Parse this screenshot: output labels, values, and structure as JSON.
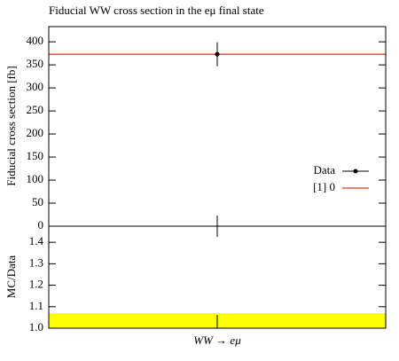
{
  "chart_data": [
    {
      "type": "errorbar",
      "title": "Fiducial WW cross section in the eμ final state",
      "ylabel": "Fiducial cross section [fb]",
      "ylim": [
        0,
        433
      ],
      "yticks": [
        0,
        50,
        100,
        150,
        200,
        250,
        300,
        350,
        400
      ],
      "series": [
        {
          "name": "Data",
          "color": "#000000",
          "values": [
            373
          ],
          "errors": [
            26
          ]
        },
        {
          "name": "[1] 0",
          "color": "#e0401c",
          "values": [
            373
          ]
        }
      ]
    },
    {
      "type": "band",
      "ylabel": "MC/Data",
      "categories": [
        "WW → eμ"
      ],
      "ylim": [
        1,
        1.475
      ],
      "yticks": [
        {
          "value": 1,
          "label": "1.0"
        },
        1.1,
        1.2,
        1.3,
        1.4
      ],
      "band": {
        "color": "#ffff00",
        "low": [
          1
        ],
        "high": [
          1.07
        ]
      }
    }
  ]
}
